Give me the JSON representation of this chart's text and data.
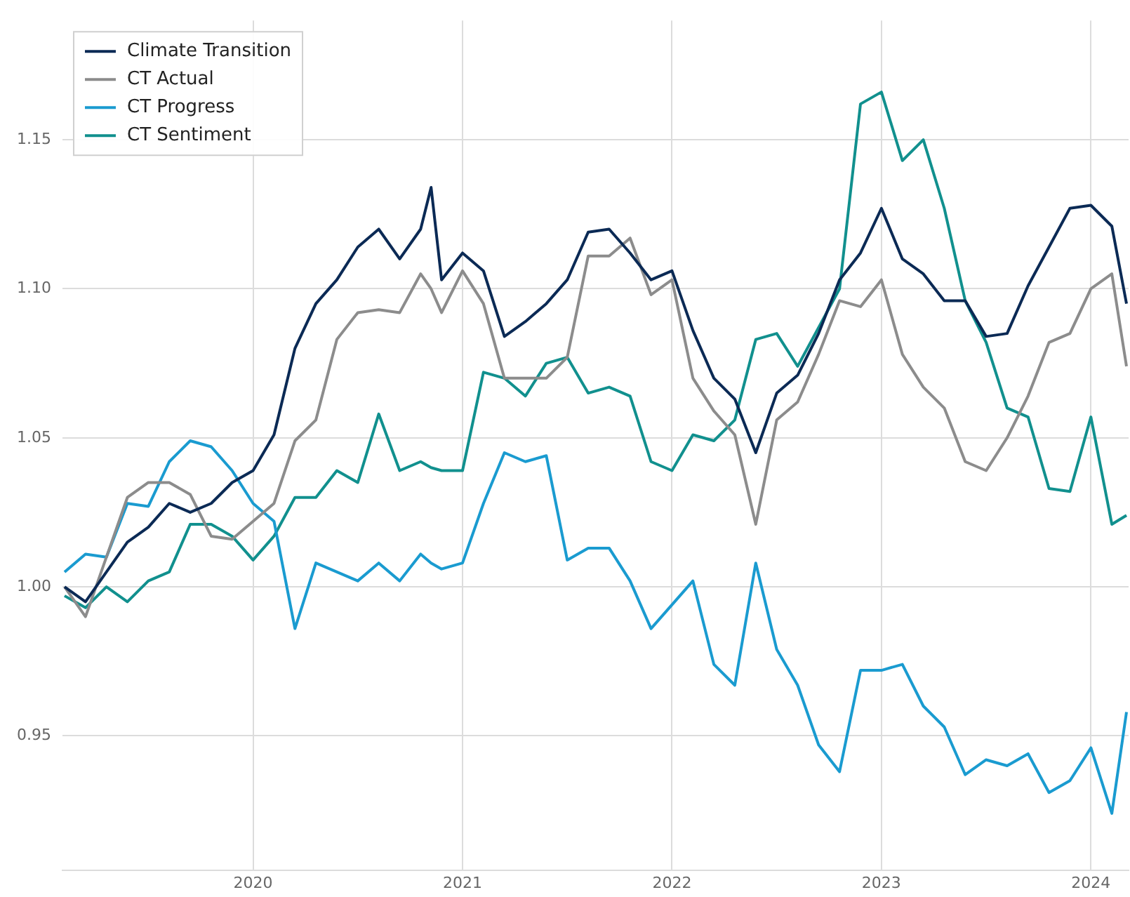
{
  "chart_data": {
    "type": "line",
    "legend": "top left",
    "grid": true,
    "marker": "none",
    "line_style": "solid",
    "xlim": [
      2019.09,
      2024.18
    ],
    "xticks": [
      2020,
      2021,
      2022,
      2023,
      2024
    ],
    "ylim": [
      0.905,
      1.19
    ],
    "yticks": [
      {
        "value": 0.95,
        "label": "0.95"
      },
      {
        "value": 1.0,
        "label": "1.00"
      },
      {
        "value": 1.05,
        "label": "1.05"
      },
      {
        "value": 1.1,
        "label": "1.10"
      },
      {
        "value": 1.15,
        "label": "1.15"
      }
    ],
    "x": [
      2019.1,
      2019.2,
      2019.3,
      2019.4,
      2019.5,
      2019.6,
      2019.7,
      2019.8,
      2019.9,
      2020.0,
      2020.1,
      2020.2,
      2020.3,
      2020.4,
      2020.5,
      2020.6,
      2020.7,
      2020.8,
      2020.85,
      2020.9,
      2021.0,
      2021.1,
      2021.2,
      2021.3,
      2021.4,
      2021.5,
      2021.6,
      2021.7,
      2021.8,
      2021.9,
      2022.0,
      2022.1,
      2022.2,
      2022.3,
      2022.4,
      2022.5,
      2022.6,
      2022.7,
      2022.8,
      2022.9,
      2023.0,
      2023.1,
      2023.2,
      2023.3,
      2023.4,
      2023.5,
      2023.6,
      2023.7,
      2023.8,
      2023.9,
      2024.0,
      2024.1,
      2024.17
    ],
    "series": [
      {
        "name": "Climate Transition",
        "color": "#0b2a55",
        "values": [
          1.0,
          0.995,
          1.005,
          1.015,
          1.02,
          1.028,
          1.025,
          1.028,
          1.035,
          1.039,
          1.051,
          1.08,
          1.095,
          1.103,
          1.114,
          1.12,
          1.11,
          1.12,
          1.134,
          1.103,
          1.112,
          1.106,
          1.084,
          1.089,
          1.095,
          1.103,
          1.119,
          1.12,
          1.112,
          1.103,
          1.106,
          1.086,
          1.07,
          1.063,
          1.045,
          1.065,
          1.071,
          1.085,
          1.103,
          1.112,
          1.127,
          1.11,
          1.105,
          1.096,
          1.096,
          1.084,
          1.085,
          1.101,
          1.114,
          1.127,
          1.128,
          1.121,
          1.095
        ]
      },
      {
        "name": "CT Actual",
        "color": "#8c8c8c",
        "values": [
          1.0,
          0.99,
          1.01,
          1.03,
          1.035,
          1.035,
          1.031,
          1.017,
          1.016,
          1.022,
          1.028,
          1.049,
          1.056,
          1.083,
          1.092,
          1.093,
          1.092,
          1.105,
          1.1,
          1.092,
          1.106,
          1.095,
          1.07,
          1.07,
          1.07,
          1.077,
          1.111,
          1.111,
          1.117,
          1.098,
          1.103,
          1.07,
          1.059,
          1.051,
          1.021,
          1.056,
          1.062,
          1.078,
          1.096,
          1.094,
          1.103,
          1.078,
          1.067,
          1.06,
          1.042,
          1.039,
          1.05,
          1.064,
          1.082,
          1.085,
          1.1,
          1.105,
          1.074
        ]
      },
      {
        "name": "CT Progress",
        "color": "#1a9bd0",
        "values": [
          1.005,
          1.011,
          1.01,
          1.028,
          1.027,
          1.042,
          1.049,
          1.047,
          1.039,
          1.028,
          1.022,
          0.986,
          1.008,
          1.005,
          1.002,
          1.008,
          1.002,
          1.011,
          1.008,
          1.006,
          1.008,
          1.028,
          1.045,
          1.042,
          1.044,
          1.009,
          1.013,
          1.013,
          1.002,
          0.986,
          0.994,
          1.002,
          0.974,
          0.967,
          1.008,
          0.979,
          0.967,
          0.947,
          0.938,
          0.972,
          0.972,
          0.974,
          0.96,
          0.953,
          0.937,
          0.942,
          0.94,
          0.944,
          0.931,
          0.935,
          0.946,
          0.924,
          0.958
        ]
      },
      {
        "name": "CT Sentiment",
        "color": "#11908e",
        "values": [
          0.997,
          0.993,
          1.0,
          0.995,
          1.002,
          1.005,
          1.021,
          1.021,
          1.017,
          1.009,
          1.017,
          1.03,
          1.03,
          1.039,
          1.035,
          1.058,
          1.039,
          1.042,
          1.04,
          1.039,
          1.039,
          1.072,
          1.07,
          1.064,
          1.075,
          1.077,
          1.065,
          1.067,
          1.064,
          1.042,
          1.039,
          1.051,
          1.049,
          1.056,
          1.083,
          1.085,
          1.074,
          1.087,
          1.1,
          1.162,
          1.166,
          1.143,
          1.15,
          1.127,
          1.096,
          1.082,
          1.06,
          1.057,
          1.033,
          1.032,
          1.057,
          1.021,
          1.024
        ]
      }
    ]
  }
}
